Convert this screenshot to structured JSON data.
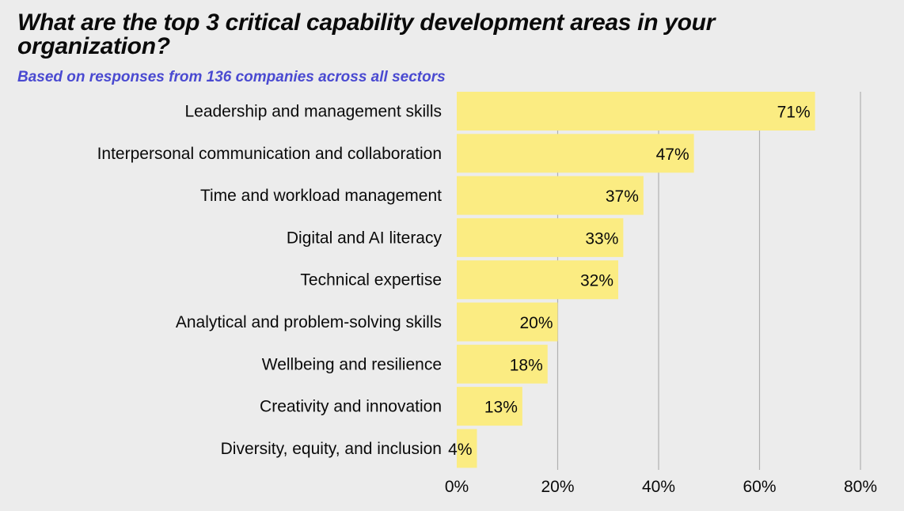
{
  "colors": {
    "background": "#ececec",
    "bar": "#fbec82",
    "subtitle": "#4a4ad1",
    "gridline": "#b0b0b0",
    "text": "#0a0a0a"
  },
  "chart_data": {
    "type": "bar",
    "orientation": "horizontal",
    "title": "What are the top 3 critical capability development areas in your organization?",
    "subtitle": "Based on responses from 136 companies across all sectors",
    "categories": [
      "Leadership and management skills",
      "Interpersonal communication and collaboration",
      "Time and workload management",
      "Digital and AI literacy",
      "Technical expertise",
      "Analytical and problem-solving skills",
      "Wellbeing and resilience",
      "Creativity and innovation",
      "Diversity, equity, and inclusion"
    ],
    "values": [
      71,
      47,
      37,
      33,
      32,
      20,
      18,
      13,
      4
    ],
    "value_labels": [
      "71%",
      "47%",
      "37%",
      "33%",
      "32%",
      "20%",
      "18%",
      "13%",
      "4%"
    ],
    "xlim": [
      0,
      80
    ],
    "xticks": [
      0,
      20,
      40,
      60,
      80
    ],
    "xtick_labels": [
      "0%",
      "20%",
      "40%",
      "60%",
      "80%"
    ],
    "xlabel": "",
    "ylabel": "",
    "grid": true,
    "legend": "none"
  }
}
